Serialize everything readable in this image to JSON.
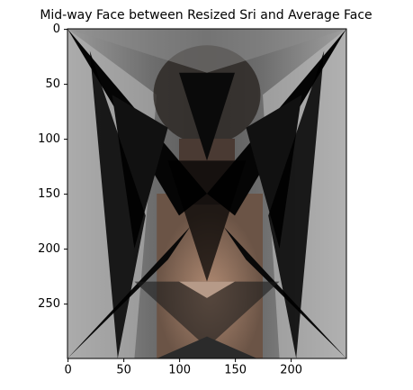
{
  "chart_data": {
    "type": "image",
    "title": "Mid-way Face between Resized Sri and Average Face",
    "xlim": [
      -0.5,
      249.5
    ],
    "ylim": [
      299.5,
      -0.5
    ],
    "xticks": [
      0,
      50,
      100,
      150,
      200
    ],
    "yticks": [
      0,
      50,
      100,
      150,
      200,
      250
    ]
  }
}
